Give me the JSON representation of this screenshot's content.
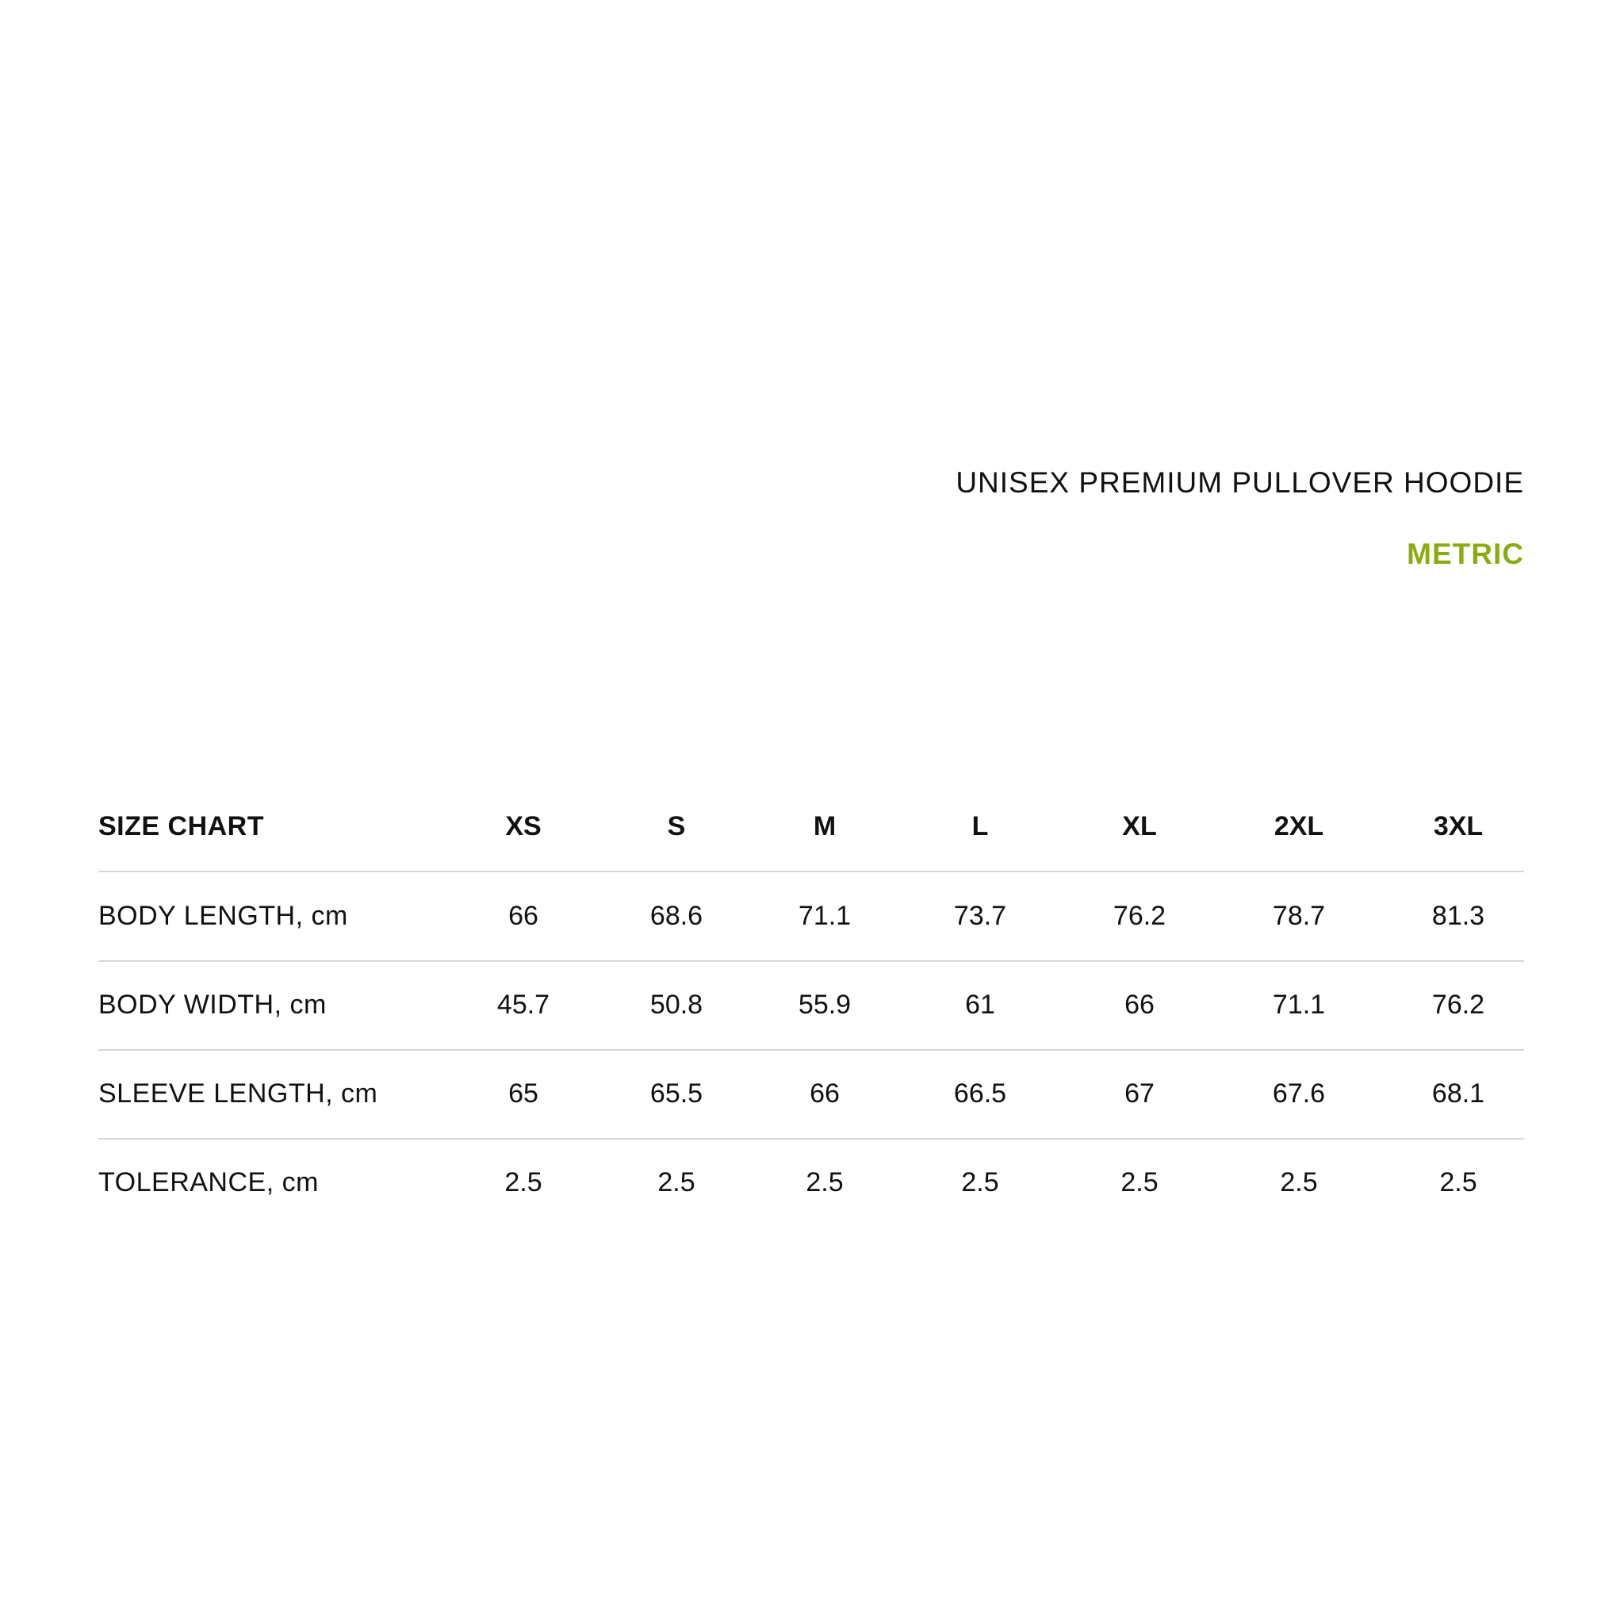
{
  "title": "UNISEX PREMIUM PULLOVER HOODIE",
  "subtitle": "METRIC",
  "accent_color": "#8aac10",
  "table": {
    "header": [
      "SIZE CHART",
      "XS",
      "S",
      "M",
      "L",
      "XL",
      "2XL",
      "3XL"
    ],
    "rows": [
      [
        "BODY LENGTH, cm",
        "66",
        "68.6",
        "71.1",
        "73.7",
        "76.2",
        "78.7",
        "81.3"
      ],
      [
        "BODY WIDTH, cm",
        "45.7",
        "50.8",
        "55.9",
        "61",
        "66",
        "71.1",
        "76.2"
      ],
      [
        "SLEEVE LENGTH, cm",
        "65",
        "65.5",
        "66",
        "66.5",
        "67",
        "67.6",
        "68.1"
      ],
      [
        "TOLERANCE, cm",
        "2.5",
        "2.5",
        "2.5",
        "2.5",
        "2.5",
        "2.5",
        "2.5"
      ]
    ]
  }
}
